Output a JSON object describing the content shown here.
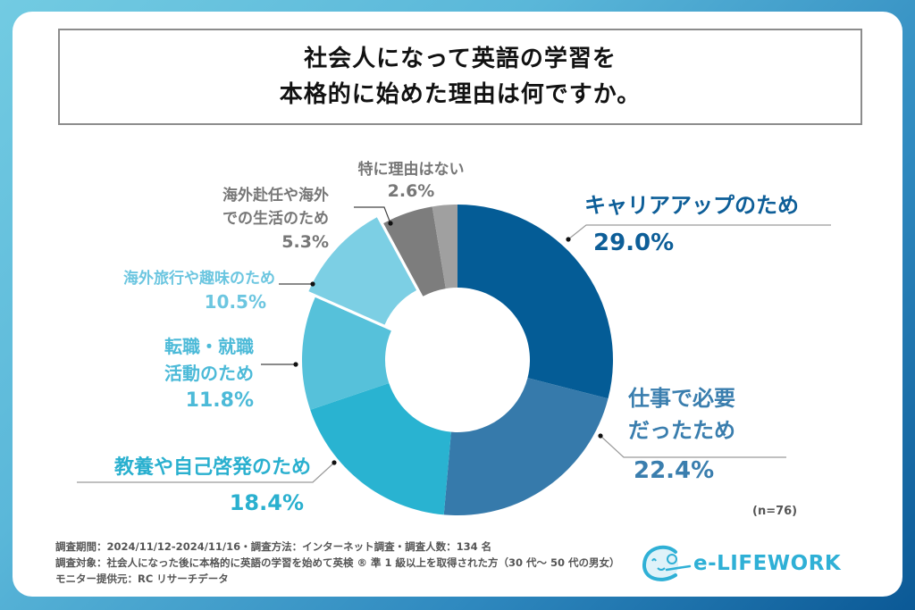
{
  "title": {
    "line1": "社会人になって英語の学習を",
    "line2": "本格的に始めた理由は何ですか。"
  },
  "chart_data": {
    "type": "pie",
    "variant": "donut",
    "title": "社会人になって英語の学習を本格的に始めた理由は何ですか。",
    "start": "top, clockwise",
    "slices": [
      {
        "label": "キャリアアップのため",
        "label_lines": [
          "キャリアアップのため"
        ],
        "value": 29.0,
        "value_label": "29.0%",
        "color": "#045c96",
        "text_color": "#0d5e98",
        "exploded": false
      },
      {
        "label": "仕事で必要だったため",
        "label_lines": [
          "仕事で必要",
          "だったため"
        ],
        "value": 22.4,
        "value_label": "22.4%",
        "color": "#367aab",
        "text_color": "#3a7eae",
        "exploded": false
      },
      {
        "label": "教養や自己啓発のため",
        "label_lines": [
          "教養や自己啓発のため"
        ],
        "value": 18.4,
        "value_label": "18.4%",
        "color": "#29b3d1",
        "text_color": "#2ab0cf",
        "exploded": false
      },
      {
        "label": "転職・就職活動のため",
        "label_lines": [
          "転職・就職",
          "活動のため"
        ],
        "value": 11.8,
        "value_label": "11.8%",
        "color": "#56c1da",
        "text_color": "#4cbad8",
        "exploded": false
      },
      {
        "label": "海外旅行や趣味のため",
        "label_lines": [
          "海外旅行や趣味のため"
        ],
        "value": 10.5,
        "value_label": "10.5%",
        "color": "#7ccfe4",
        "text_color": "#6cc6e0",
        "exploded": true
      },
      {
        "label": "海外赴任や海外での生活のため",
        "label_lines": [
          "海外赴任や海外",
          "での生活のため"
        ],
        "value": 5.3,
        "value_label": "5.3%",
        "color": "#7d7d7d",
        "text_color": "#777777",
        "exploded": false
      },
      {
        "label": "特に理由はない",
        "label_lines": [
          "特に理由はない"
        ],
        "value": 2.6,
        "value_label": "2.6%",
        "color": "#a0a0a0",
        "text_color": "#777777",
        "exploded": false
      }
    ],
    "sample_size": "(n=76)"
  },
  "footer": {
    "notes": [
      "調査期間：2024/11/12-2024/11/16・調査方法：インターネット調査・調査人数：134 名",
      "調査対象：社会人になった後に本格的に英語の学習を始めて英検 ® 準 1 級以上を取得された方（30 代～ 50 代の男女）",
      "モニター提供元：RC リサーチデータ"
    ],
    "logo_text": "e-LIFEWORK",
    "logo_icon": "smiling-face-swirl-icon"
  }
}
